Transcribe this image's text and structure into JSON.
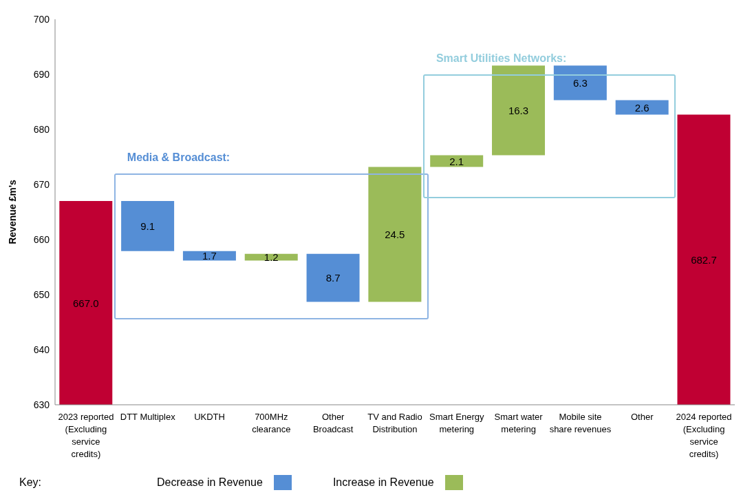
{
  "chart_data": {
    "type": "bar",
    "ylabel": "Revenue £m's",
    "legend_title": "Key:",
    "legend": "bottom",
    "categories": [
      "2023 reported (Excluding service credits)",
      "DTT Multiplex",
      "UKDTH",
      "700MHz clearance",
      "Other Broadcast",
      "TV and Radio Distribution",
      "Smart Energy metering",
      "Smart water metering",
      "Mobile site share revenues",
      "Other",
      "2024 reported (Excluding service credits)"
    ],
    "series": [
      {
        "color": "#c00033",
        "values": [
          667.0,
          null,
          null,
          null,
          null,
          null,
          null,
          null,
          null,
          null,
          682.7
        ],
        "value_labels": [
          "667.0",
          null,
          null,
          null,
          null,
          null,
          null,
          null,
          null,
          null,
          "682.7"
        ]
      },
      {
        "name": "Decrease in Revenue",
        "color": "#558ed5",
        "base": [
          null,
          657.9,
          656.2,
          null,
          648.7,
          null,
          null,
          null,
          685.3,
          682.7,
          null
        ],
        "values": [
          null,
          9.1,
          1.7,
          null,
          8.7,
          null,
          null,
          null,
          6.3,
          2.6,
          null
        ],
        "value_labels": [
          null,
          "9.1",
          "1.7",
          null,
          "8.7",
          null,
          null,
          null,
          "6.3",
          "2.6",
          null
        ]
      },
      {
        "name": "Increase in Revenue",
        "color": "#9bbb59",
        "base": [
          null,
          null,
          null,
          656.2,
          null,
          648.7,
          673.2,
          675.3,
          null,
          null,
          null
        ],
        "values": [
          null,
          null,
          null,
          1.2,
          null,
          24.5,
          2.1,
          16.3,
          null,
          null,
          null
        ],
        "value_labels": [
          null,
          null,
          null,
          "1.2",
          null,
          "24.5",
          "2.1",
          "16.3",
          null,
          null,
          null
        ]
      }
    ],
    "annotations": [
      "Media & Broadcast:",
      "Smart Utilities Networks:"
    ],
    "ylim": [
      630,
      700
    ],
    "yticks": [
      630,
      640,
      650,
      660,
      670,
      680,
      690,
      700
    ],
    "grid": false
  }
}
